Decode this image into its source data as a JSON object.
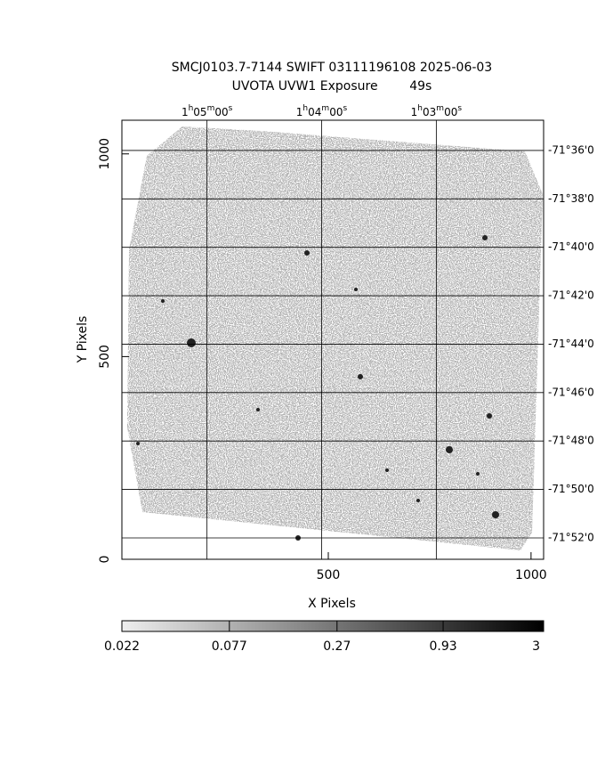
{
  "chart_data": {
    "type": "image",
    "title": "SMCJ0103.7-7144 SWIFT 03111196108 2025-06-03",
    "subtitle": "UVOTA UVW1 Exposure        49s",
    "xlabel": "X Pixels",
    "ylabel": "Y Pixels",
    "xlim": [
      -9,
      1031
    ],
    "xticks": [
      500,
      1000
    ],
    "ylim": [
      0,
      1083
    ],
    "yticks": [
      0,
      500,
      1000
    ],
    "x2lim": [
      1.0957,
      1.0344
    ],
    "x2ticks": [
      {
        "value": 1.08333,
        "label": "1h05m00s"
      },
      {
        "value": 1.06667,
        "label": "1h04m00s"
      },
      {
        "value": 1.05,
        "label": "1h03m00s"
      }
    ],
    "y2lim": [
      -71.5792,
      -71.8814
    ],
    "y2ticks": [
      {
        "value": -71.6,
        "label": "-71°36'0"
      },
      {
        "value": -71.63333,
        "label": "-71°38'0"
      },
      {
        "value": -71.66667,
        "label": "-71°40'0"
      },
      {
        "value": -71.7,
        "label": "-71°42'0"
      },
      {
        "value": -71.73333,
        "label": "-71°44'0"
      },
      {
        "value": -71.76667,
        "label": "-71°46'0"
      },
      {
        "value": -71.8,
        "label": "-71°48'0"
      },
      {
        "value": -71.83333,
        "label": "-71°50'0"
      },
      {
        "value": -71.86667,
        "label": "-71°52'0"
      }
    ],
    "grid": true,
    "colorbar": {
      "lim": [
        0.022,
        3
      ],
      "scale": "log",
      "ticks": [
        0.022,
        0.077,
        0.27,
        0.93,
        3
      ]
    }
  }
}
